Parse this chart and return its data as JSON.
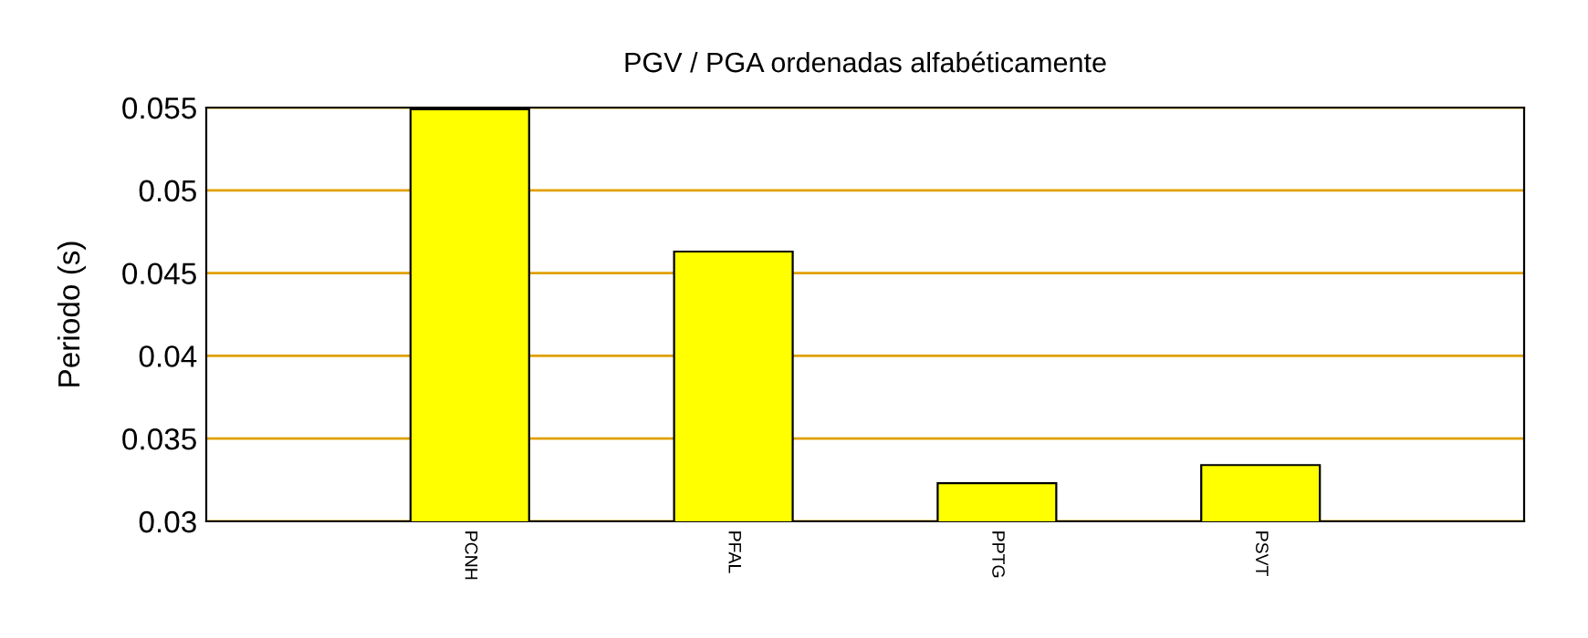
{
  "chart_data": {
    "type": "bar",
    "title": "PGV / PGA ordenadas alfabéticamente",
    "ylabel": "Periodo (s)",
    "categories": [
      "PCNH",
      "PFAL",
      "PPTG",
      "PSVT"
    ],
    "series": [
      {
        "color": "#ffff00",
        "values": [
          0.0549,
          0.0463,
          0.0323,
          0.0334
        ]
      }
    ],
    "ylim": [
      0.03,
      0.055
    ],
    "yticks": [
      0.03,
      0.035,
      0.04,
      0.045,
      0.05,
      0.055
    ],
    "grid": "y",
    "legend": false
  }
}
